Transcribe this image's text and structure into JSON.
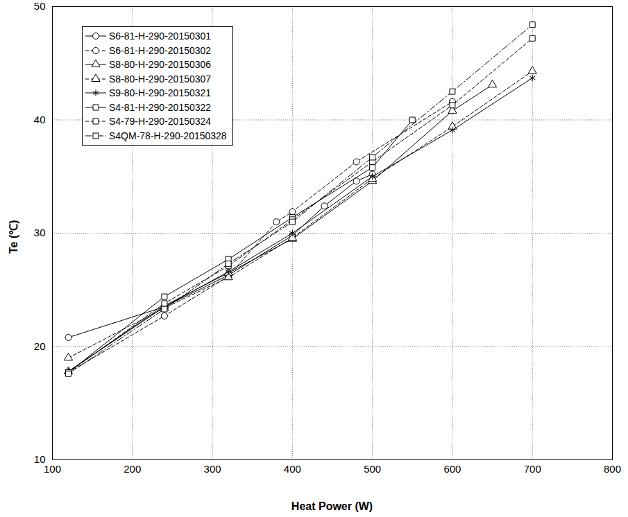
{
  "chart_data": {
    "type": "line",
    "x_label": "Heat Power (W)",
    "y_label": "Te (℃)",
    "xlim": [
      100,
      800
    ],
    "xticks": [
      100,
      200,
      300,
      400,
      500,
      600,
      700,
      800
    ],
    "ylim": [
      10,
      50
    ],
    "yticks": [
      10,
      20,
      30,
      40,
      50
    ],
    "grid": true,
    "legend": "upper left",
    "series": [
      {
        "name": "S6-81-H-290-20150301",
        "color": "#000000",
        "marker": "circle",
        "line_style": "solid",
        "x": [
          120,
          240,
          320,
          400,
          440,
          480,
          500
        ],
        "values": [
          20.8,
          23.5,
          26.3,
          29.8,
          32.4,
          34.6,
          35.2
        ]
      },
      {
        "name": "S6-81-H-290-20150302",
        "color": "#000000",
        "marker": "circle",
        "line_style": "dashed",
        "x": [
          120,
          240,
          320,
          380,
          400,
          480,
          600
        ],
        "values": [
          17.7,
          22.7,
          26.2,
          31.0,
          31.9,
          36.3,
          41.6
        ]
      },
      {
        "name": "S8-80-H-290-20150306",
        "color": "#000000",
        "marker": "triangle",
        "line_style": "solid",
        "x": [
          120,
          240,
          320,
          400,
          500,
          600,
          650
        ],
        "values": [
          17.8,
          23.6,
          26.5,
          29.5,
          34.6,
          40.8,
          43.1
        ]
      },
      {
        "name": "S8-80-H-290-20150307",
        "color": "#000000",
        "marker": "triangle",
        "line_style": "dashed",
        "x": [
          120,
          240,
          320,
          400,
          500,
          600,
          700
        ],
        "values": [
          19.0,
          23.4,
          26.1,
          29.6,
          34.8,
          39.4,
          44.3
        ]
      },
      {
        "name": "S9-80-H-290-20150321",
        "color": "#000000",
        "marker": "star",
        "line_style": "solid",
        "x": [
          120,
          240,
          320,
          400,
          500,
          600,
          700
        ],
        "values": [
          17.8,
          23.5,
          26.6,
          30.0,
          35.0,
          39.1,
          43.7
        ]
      },
      {
        "name": "S4-81-H-290-20150322",
        "color": "#000000",
        "marker": "square",
        "line_style": "solid",
        "x": [
          120,
          240,
          320,
          400,
          500,
          550
        ],
        "values": [
          17.7,
          24.4,
          27.7,
          31.4,
          35.8,
          40.0
        ]
      },
      {
        "name": "S4-79-H-290-20150324",
        "color": "#000000",
        "marker": "square",
        "line_style": "dashed",
        "x": [
          120,
          240,
          320,
          400,
          500,
          600,
          700
        ],
        "values": [
          17.7,
          23.8,
          27.1,
          31.2,
          36.3,
          41.3,
          47.2
        ]
      },
      {
        "name": "S4QM-78-H-290-20150328",
        "color": "#000000",
        "marker": "square",
        "line_style": "dashdot",
        "x": [
          120,
          240,
          320,
          400,
          500,
          600,
          700
        ],
        "values": [
          17.6,
          23.3,
          27.3,
          31.0,
          36.7,
          42.5,
          48.4
        ]
      }
    ]
  }
}
